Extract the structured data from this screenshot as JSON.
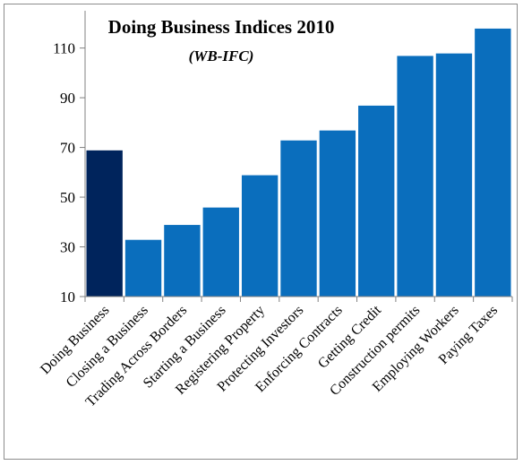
{
  "chart_data": {
    "type": "bar",
    "title": "Doing Business Indices 2010",
    "subtitle": "(WB-IFC)",
    "xlabel": "",
    "ylabel": "",
    "categories": [
      "Doing Business",
      "Closing a Business",
      "Trading Across Borders",
      "Starting a Business",
      "Registering Property",
      "Protecting Investors",
      "Enforcing Contracts",
      "Getting Credit",
      "Construction permits",
      "Employing Workers",
      "Paying Taxes"
    ],
    "values": [
      69,
      33,
      39,
      46,
      59,
      73,
      77,
      87,
      107,
      108,
      118
    ],
    "ylim": [
      10,
      125
    ],
    "yticks": [
      10,
      30,
      50,
      70,
      90,
      110
    ],
    "grid": false,
    "legend": "none",
    "colors": {
      "highlight": "#00245c",
      "bar": "#0a6ebd",
      "bar_edge": "#ffffff",
      "axis": "#808080"
    },
    "highlight_index": 0
  }
}
